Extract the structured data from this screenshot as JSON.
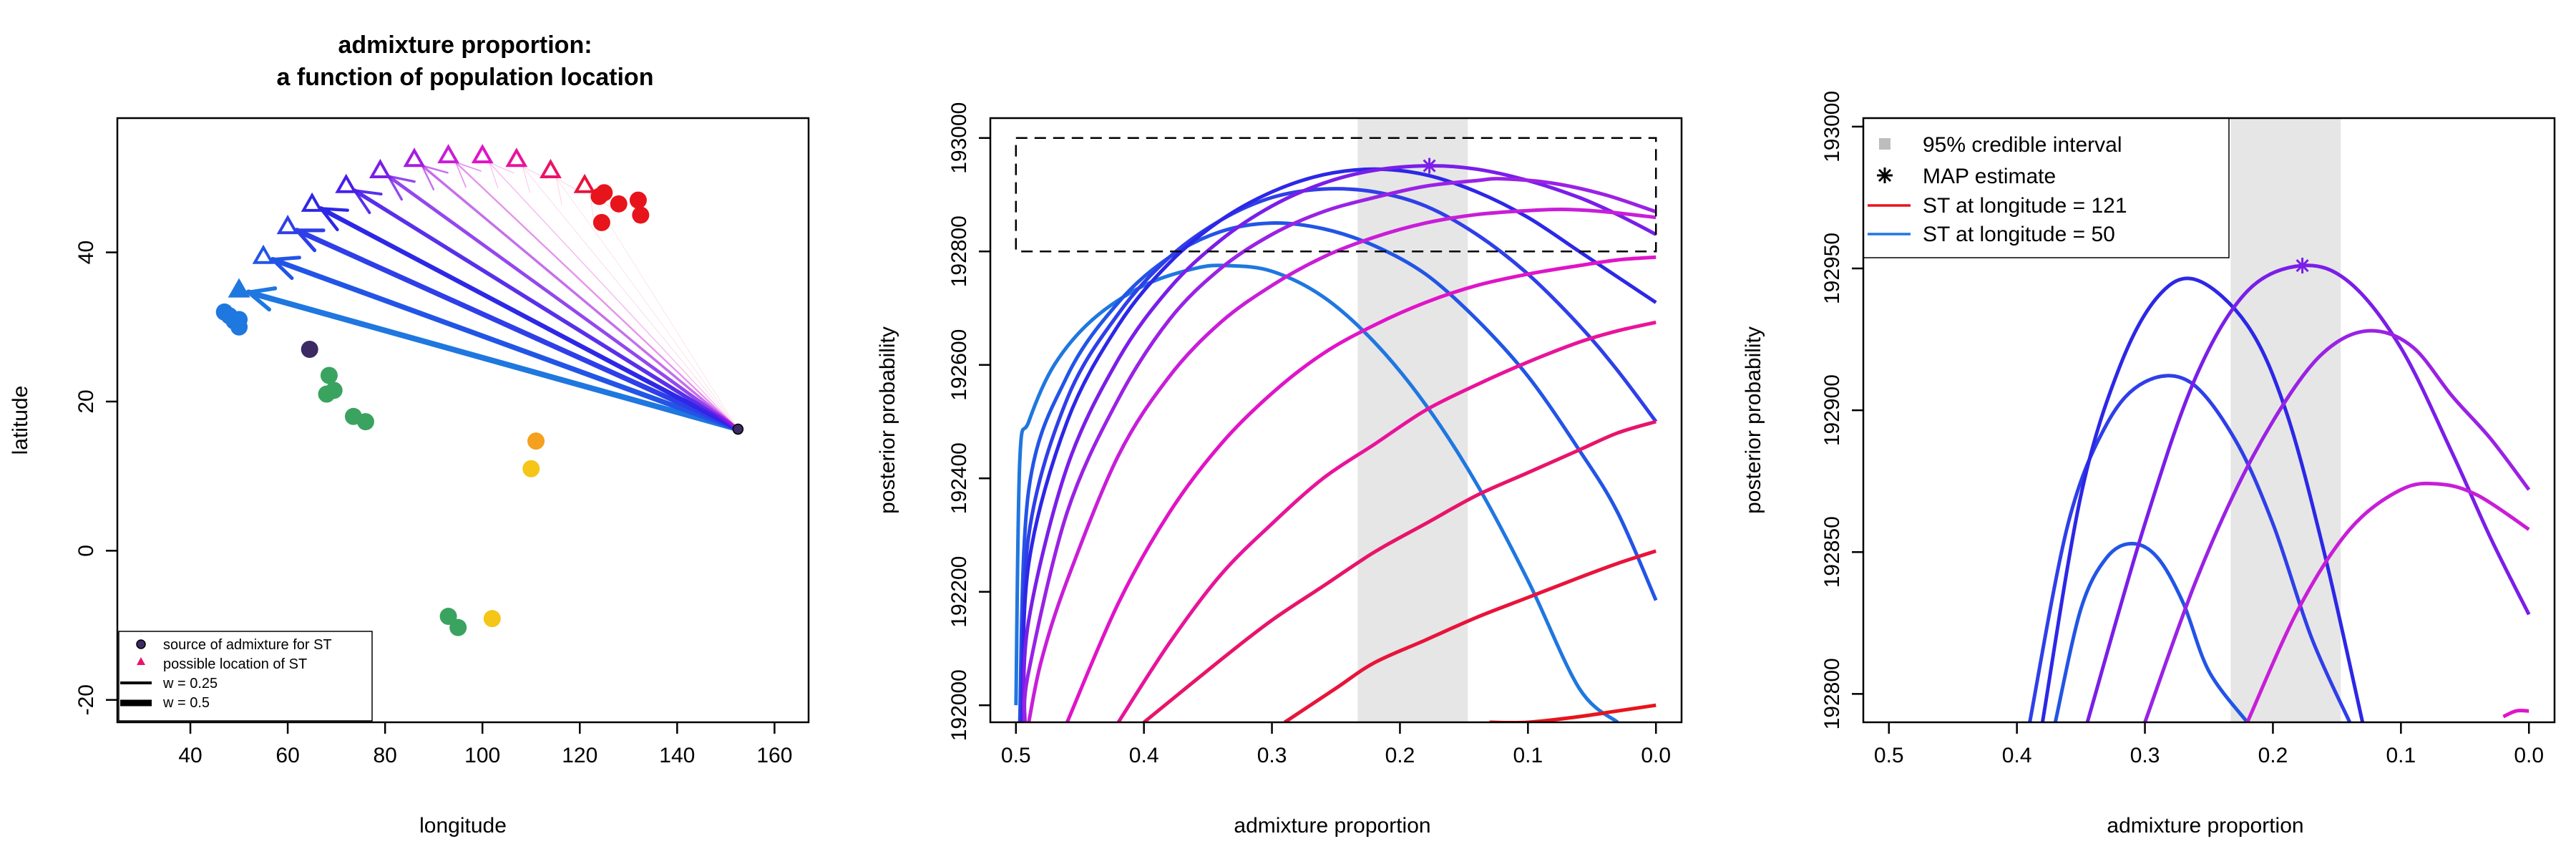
{
  "chart_data": [
    {
      "type": "scatter",
      "title": "admixture proportion:",
      "subtitle": "a function of population location",
      "xlabel": "longitude",
      "ylabel": "latitude",
      "xlim": [
        25,
        167
      ],
      "ylim": [
        -23,
        58
      ],
      "xticks": [
        "40",
        "60",
        "80",
        "100",
        "120",
        "140",
        "160"
      ],
      "yticks": [
        "-20",
        "0",
        "20",
        "40"
      ],
      "legend_position": "bottom-left",
      "legend": [
        {
          "label": "source of admixture for ST",
          "symbol": "source-point"
        },
        {
          "label": "possible location of ST",
          "symbol": "triangle"
        },
        {
          "label": "w = 0.25",
          "symbol": "line-thin"
        },
        {
          "label": "w = 0.5",
          "symbol": "line-thick"
        }
      ],
      "source": {
        "lon": 152.5,
        "lat": 16.3,
        "color": "#3b2a63"
      },
      "populations": [
        {
          "lon": 47,
          "lat": 32,
          "color": "#1f77e0"
        },
        {
          "lon": 48,
          "lat": 31.5,
          "color": "#1f77e0"
        },
        {
          "lon": 49,
          "lat": 30.8,
          "color": "#1f77e0"
        },
        {
          "lon": 50,
          "lat": 30,
          "color": "#1f77e0"
        },
        {
          "lon": 50,
          "lat": 31,
          "color": "#1f77e0"
        },
        {
          "lon": 64.5,
          "lat": 27,
          "color": "#3b2a63"
        },
        {
          "lon": 68.5,
          "lat": 23.5,
          "color": "#3aa35f"
        },
        {
          "lon": 68,
          "lat": 21,
          "color": "#3aa35f"
        },
        {
          "lon": 69.5,
          "lat": 21.5,
          "color": "#3aa35f"
        },
        {
          "lon": 73.5,
          "lat": 18,
          "color": "#3aa35f"
        },
        {
          "lon": 76,
          "lat": 17.3,
          "color": "#3aa35f"
        },
        {
          "lon": 93,
          "lat": -8.8,
          "color": "#3aa35f"
        },
        {
          "lon": 95,
          "lat": -10.3,
          "color": "#3aa35f"
        },
        {
          "lon": 102,
          "lat": -9.1,
          "color": "#f5c518"
        },
        {
          "lon": 110,
          "lat": 11,
          "color": "#f5c518"
        },
        {
          "lon": 111,
          "lat": 14.7,
          "color": "#f5a01e"
        },
        {
          "lon": 124,
          "lat": 47.5,
          "color": "#e8141c"
        },
        {
          "lon": 125,
          "lat": 48,
          "color": "#e8141c"
        },
        {
          "lon": 124.5,
          "lat": 44,
          "color": "#e8141c"
        },
        {
          "lon": 128,
          "lat": 46.5,
          "color": "#e8141c"
        },
        {
          "lon": 132,
          "lat": 47,
          "color": "#e8141c"
        },
        {
          "lon": 132.5,
          "lat": 45,
          "color": "#e8141c"
        }
      ],
      "candidate_locations": [
        {
          "lon": 50,
          "lat": 35,
          "color": "#1f77e0",
          "w": 0.5
        },
        {
          "lon": 55,
          "lat": 39.5,
          "color": "#2255e6",
          "w": 0.45
        },
        {
          "lon": 60,
          "lat": 43.5,
          "color": "#2f3fe8",
          "w": 0.45
        },
        {
          "lon": 65,
          "lat": 46.5,
          "color": "#2d27e6",
          "w": 0.4
        },
        {
          "lon": 72,
          "lat": 49,
          "color": "#4a1ee8",
          "w": 0.35
        },
        {
          "lon": 79,
          "lat": 51,
          "color": "#7a1ee8",
          "w": 0.3
        },
        {
          "lon": 86,
          "lat": 52.5,
          "color": "#a31ee0",
          "w": 0.22
        },
        {
          "lon": 93,
          "lat": 53,
          "color": "#c81ed8",
          "w": 0.15
        },
        {
          "lon": 100,
          "lat": 53,
          "color": "#e014c8",
          "w": 0.08
        },
        {
          "lon": 107,
          "lat": 52.5,
          "color": "#e8149a",
          "w": 0.04
        },
        {
          "lon": 114,
          "lat": 51,
          "color": "#e8146a",
          "w": 0.02
        },
        {
          "lon": 121,
          "lat": 49,
          "color": "#e8143a",
          "w": 0.01
        }
      ]
    },
    {
      "type": "line",
      "xlabel": "admixture proportion",
      "ylabel": "posterior probability",
      "xlim": [
        0.52,
        -0.02
      ],
      "ylim": [
        191970,
        193035
      ],
      "xticks": [
        "0.5",
        "0.4",
        "0.3",
        "0.2",
        "0.1",
        "0.0"
      ],
      "yticks": [
        "192000",
        "192200",
        "192400",
        "192600",
        "192800",
        "193000"
      ],
      "credible_interval": [
        0.147,
        0.233
      ],
      "map_estimate": {
        "x": 0.177,
        "y": 192951,
        "color": "#7a1ee8"
      },
      "zoom_box": {
        "x": [
          0.5,
          0.0
        ],
        "y": [
          192800,
          193000
        ]
      },
      "series": [
        {
          "color": "#1f77e0",
          "x": [
            0.5,
            0.497,
            0.49,
            0.47,
            0.44,
            0.4,
            0.36,
            0.335,
            0.3,
            0.26,
            0.22,
            0.18,
            0.14,
            0.1,
            0.06,
            0.03
          ],
          "y": [
            192000,
            192430,
            192500,
            192600,
            192680,
            192740,
            192770,
            192775,
            192765,
            192720,
            192640,
            192530,
            192390,
            192220,
            192030,
            191970
          ]
        },
        {
          "color": "#2255e6",
          "x": [
            0.497,
            0.49,
            0.46,
            0.42,
            0.38,
            0.34,
            0.3,
            0.26,
            0.22,
            0.18,
            0.14,
            0.1,
            0.06,
            0.03,
            0.0
          ],
          "y": [
            191970,
            192380,
            192580,
            192710,
            192790,
            192835,
            192850,
            192840,
            192810,
            192760,
            192680,
            192580,
            192450,
            192340,
            192185
          ]
        },
        {
          "color": "#2f3fe8",
          "x": [
            0.496,
            0.49,
            0.46,
            0.42,
            0.38,
            0.34,
            0.3,
            0.26,
            0.22,
            0.18,
            0.14,
            0.1,
            0.06,
            0.03,
            0.0
          ],
          "y": [
            191970,
            192300,
            192540,
            192690,
            192790,
            192855,
            192895,
            192910,
            192905,
            192880,
            192830,
            192760,
            192670,
            192590,
            192500
          ]
        },
        {
          "color": "#2d27e6",
          "x": [
            0.495,
            0.49,
            0.46,
            0.42,
            0.38,
            0.34,
            0.3,
            0.26,
            0.22,
            0.18,
            0.14,
            0.1,
            0.06,
            0.03,
            0.0
          ],
          "y": [
            191970,
            192250,
            192500,
            192670,
            192780,
            192855,
            192905,
            192935,
            192945,
            192935,
            192905,
            192860,
            192800,
            192755,
            192710
          ]
        },
        {
          "color": "#7a1ee8",
          "x": [
            0.494,
            0.49,
            0.46,
            0.42,
            0.38,
            0.34,
            0.3,
            0.26,
            0.22,
            0.177,
            0.14,
            0.1,
            0.06,
            0.03,
            0.0
          ],
          "y": [
            191970,
            192150,
            192420,
            192610,
            192735,
            192820,
            192880,
            192920,
            192943,
            192951,
            192945,
            192925,
            192895,
            192865,
            192830
          ]
        },
        {
          "color": "#9a22e4",
          "x": [
            0.493,
            0.49,
            0.46,
            0.42,
            0.38,
            0.34,
            0.3,
            0.26,
            0.22,
            0.18,
            0.14,
            0.12,
            0.08,
            0.04,
            0.0
          ],
          "y": [
            191970,
            192060,
            192340,
            192540,
            192680,
            192770,
            192830,
            192870,
            192895,
            192915,
            192925,
            192928,
            192920,
            192900,
            192870
          ]
        },
        {
          "color": "#c81ed8",
          "x": [
            0.49,
            0.48,
            0.46,
            0.42,
            0.38,
            0.34,
            0.3,
            0.26,
            0.22,
            0.18,
            0.14,
            0.1,
            0.07,
            0.04,
            0.0
          ],
          "y": [
            191970,
            192080,
            192220,
            192440,
            192580,
            192675,
            192740,
            192790,
            192825,
            192850,
            192865,
            192872,
            192874,
            192870,
            192860
          ]
        },
        {
          "color": "#e014c8",
          "x": [
            0.46,
            0.42,
            0.38,
            0.34,
            0.3,
            0.26,
            0.22,
            0.18,
            0.14,
            0.1,
            0.06,
            0.03,
            0.0
          ],
          "y": [
            191970,
            192180,
            192340,
            192460,
            192550,
            192620,
            192670,
            192710,
            192740,
            192760,
            192775,
            192785,
            192790
          ]
        },
        {
          "color": "#e8149a",
          "x": [
            0.42,
            0.38,
            0.34,
            0.3,
            0.26,
            0.22,
            0.18,
            0.14,
            0.1,
            0.06,
            0.03,
            0.0
          ],
          "y": [
            191970,
            192110,
            192230,
            192320,
            192400,
            192460,
            192520,
            192565,
            192605,
            192640,
            192660,
            192675
          ]
        },
        {
          "color": "#e8146a",
          "x": [
            0.4,
            0.34,
            0.3,
            0.26,
            0.22,
            0.18,
            0.14,
            0.1,
            0.06,
            0.03,
            0.0
          ],
          "y": [
            191970,
            192080,
            192150,
            192210,
            192270,
            192320,
            192370,
            192410,
            192450,
            192480,
            192500
          ]
        },
        {
          "color": "#e8143a",
          "x": [
            0.29,
            0.25,
            0.22,
            0.18,
            0.14,
            0.1,
            0.06,
            0.03,
            0.0
          ],
          "y": [
            191970,
            192030,
            192075,
            192115,
            192155,
            192190,
            192225,
            192250,
            192272
          ]
        },
        {
          "color": "#e8141c",
          "x": [
            0.13,
            0.1,
            0.06,
            0.03,
            0.0
          ],
          "y": [
            191970,
            191970,
            191980,
            191990,
            192000
          ]
        }
      ]
    },
    {
      "type": "line",
      "xlabel": "admixture proportion",
      "ylabel": "posterior probability",
      "xlim": [
        0.52,
        -0.02
      ],
      "ylim": [
        192790,
        193003
      ],
      "xticks": [
        "0.5",
        "0.4",
        "0.3",
        "0.2",
        "0.1",
        "0.0"
      ],
      "yticks": [
        "192800",
        "192850",
        "192900",
        "192950",
        "193000"
      ],
      "credible_interval": [
        0.147,
        0.233
      ],
      "map_estimate": {
        "x": 0.177,
        "y": 192951,
        "color": "#7a1ee8"
      },
      "legend_position": "top-left",
      "legend": [
        {
          "label": "95% credible interval",
          "symbol": "grey-square",
          "color": "#bdbdbd"
        },
        {
          "label": "MAP estimate",
          "symbol": "asterisk",
          "color": "#000000"
        },
        {
          "label": "ST at longitude =  121",
          "symbol": "line",
          "color": "#e8141c"
        },
        {
          "label": "ST at longitude =  50",
          "symbol": "line",
          "color": "#1f77e0"
        }
      ],
      "series": [
        {
          "color": "#2255e6",
          "x": [
            0.37,
            0.35,
            0.33,
            0.31,
            0.29,
            0.27,
            0.25,
            0.22
          ],
          "y": [
            192790,
            192830,
            192848,
            192853,
            192848,
            192832,
            192808,
            192790
          ]
        },
        {
          "color": "#2f3fe8",
          "x": [
            0.39,
            0.36,
            0.33,
            0.3,
            0.265,
            0.23,
            0.2,
            0.17,
            0.14
          ],
          "y": [
            192790,
            192860,
            192895,
            192910,
            192910,
            192890,
            192860,
            192820,
            192790
          ]
        },
        {
          "color": "#2d27e6",
          "x": [
            0.38,
            0.35,
            0.32,
            0.29,
            0.26,
            0.22,
            0.19,
            0.16,
            0.13
          ],
          "y": [
            192790,
            192870,
            192915,
            192940,
            192946,
            192930,
            192900,
            192850,
            192790
          ]
        },
        {
          "color": "#7a1ee8",
          "x": [
            0.345,
            0.3,
            0.26,
            0.22,
            0.177,
            0.14,
            0.1,
            0.06,
            0.03,
            0.0
          ],
          "y": [
            192790,
            192860,
            192912,
            192942,
            192951,
            192945,
            192922,
            192885,
            192855,
            192828
          ]
        },
        {
          "color": "#9a22e4",
          "x": [
            0.3,
            0.26,
            0.22,
            0.18,
            0.15,
            0.12,
            0.09,
            0.06,
            0.03,
            0.0
          ],
          "y": [
            192790,
            192840,
            192880,
            192910,
            192924,
            192928,
            192922,
            192905,
            192890,
            192872
          ]
        },
        {
          "color": "#c81ed8",
          "x": [
            0.22,
            0.18,
            0.14,
            0.1,
            0.07,
            0.04,
            0.0
          ],
          "y": [
            192790,
            192830,
            192858,
            192872,
            192874,
            192870,
            192858
          ]
        },
        {
          "color": "#e014c8",
          "x": [
            0.02,
            0.01,
            0.0
          ],
          "y": [
            192792,
            192794,
            192794
          ]
        }
      ]
    }
  ]
}
